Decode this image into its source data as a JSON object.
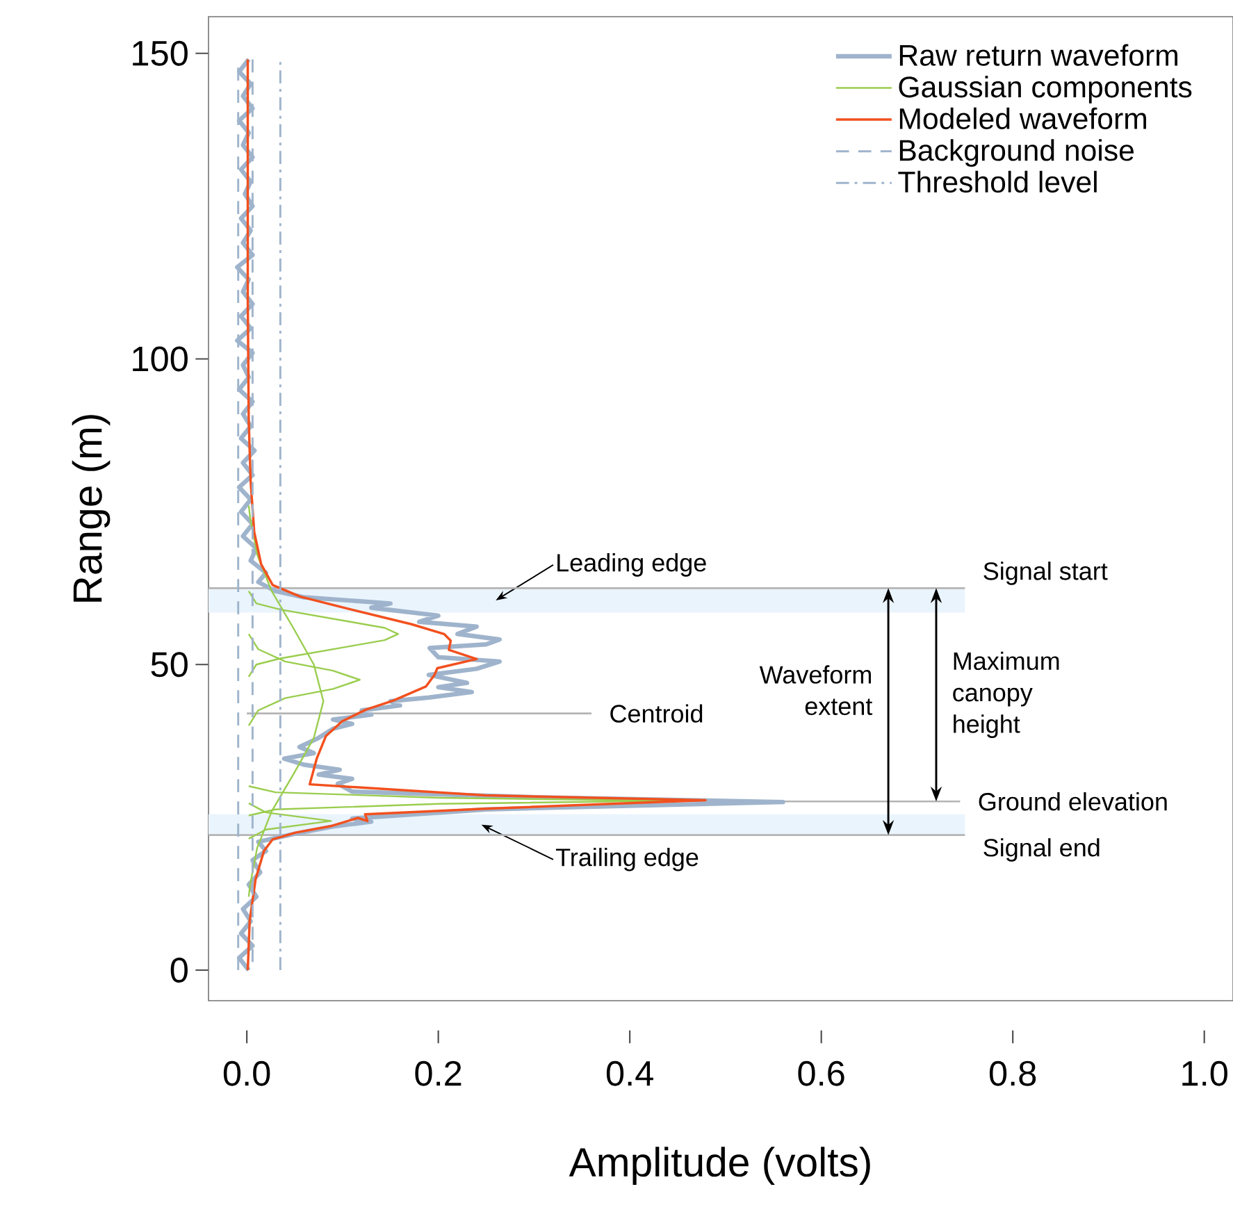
{
  "chart_data": {
    "type": "line",
    "xlabel": "Amplitude (volts)",
    "ylabel": "Range (m)",
    "xlim": [
      -0.04,
      1.03
    ],
    "ylim": [
      -5,
      156
    ],
    "xticks": [
      {
        "value": 0,
        "label": "0.0"
      },
      {
        "value": 0.2,
        "label": "0.2"
      },
      {
        "value": 0.4,
        "label": "0.4"
      },
      {
        "value": 0.6,
        "label": "0.6"
      },
      {
        "value": 0.8,
        "label": "0.8"
      },
      {
        "value": 1,
        "label": "1.0"
      }
    ],
    "yticks": [
      0,
      50,
      100,
      150
    ],
    "legend": "top right",
    "bands": [
      {
        "axis": "y",
        "from": 58.5,
        "to": 62.5,
        "label": "Leading edge",
        "color": "#eaf4fd"
      },
      {
        "axis": "y",
        "from": 22.1,
        "to": 25.5,
        "label": "Trailing edge",
        "color": "#eaf4fd"
      }
    ],
    "ref_lines": [
      {
        "axis": "y",
        "value": 62.5,
        "label": "Signal start",
        "color": "#b4b4b4"
      },
      {
        "axis": "y",
        "value": 42.0,
        "label": "Centroid",
        "color": "#b4b4b4"
      },
      {
        "axis": "y",
        "value": 27.6,
        "label": "Ground elevation",
        "color": "#b4b4b4"
      },
      {
        "axis": "y",
        "value": 22.1,
        "label": "Signal end",
        "color": "#b4b4b4"
      }
    ],
    "annotations": [
      "Waveform extent",
      "Maximum canopy height"
    ],
    "series": [
      {
        "name": "Raw return waveform",
        "color": "#9fb4cc",
        "line_style": "solid",
        "x": [
          0.002,
          -0.008,
          0.006,
          -0.006,
          0.004,
          -0.004,
          0.01,
          0.002,
          0.014,
          0.006,
          0.02,
          0.012,
          0.05,
          0.09,
          0.13,
          0.11,
          0.25,
          0.56,
          0.3,
          0.11,
          0.095,
          0.11,
          0.075,
          0.097,
          0.06,
          0.039,
          0.07,
          0.055,
          0.075,
          0.09,
          0.11,
          0.09,
          0.13,
          0.12,
          0.16,
          0.15,
          0.19,
          0.235,
          0.2,
          0.23,
          0.19,
          0.24,
          0.264,
          0.2,
          0.191,
          0.25,
          0.264,
          0.22,
          0.24,
          0.18,
          0.2,
          0.13,
          0.15,
          0.06,
          0.03,
          0.012,
          0.02,
          0.004,
          0.01,
          -0.004,
          0.006,
          -0.006,
          0.004,
          -0.008,
          0.006,
          -0.004,
          0.008,
          -0.006,
          0.004,
          -0.004,
          0.006,
          -0.008,
          0.002,
          -0.004,
          0.006,
          -0.01,
          0.004,
          -0.006,
          0.006,
          -0.004,
          0.002,
          -0.01,
          0.006,
          -0.004,
          0.004,
          -0.006,
          0.006,
          -0.002,
          0.004,
          -0.006,
          0.006,
          -0.004,
          0.002,
          -0.008,
          0.006,
          -0.004,
          0.004,
          -0.008,
          0.002
        ],
        "values": [
          0,
          2,
          4,
          6,
          8,
          10,
          12,
          14,
          16,
          18,
          19.5,
          21,
          22.3,
          23.5,
          24.3,
          24.8,
          26.3,
          27.5,
          28.3,
          29.2,
          30.5,
          31.3,
          32,
          32.8,
          33.6,
          34.6,
          35.5,
          36.5,
          38,
          39.5,
          40.3,
          41,
          41.8,
          42.5,
          43.3,
          44,
          44.6,
          45.5,
          46.3,
          47,
          48.3,
          49.3,
          50.5,
          51.2,
          52.7,
          53.3,
          54.1,
          55,
          56.2,
          57,
          58,
          59.3,
          60,
          61,
          62,
          63.5,
          65,
          67,
          69,
          71,
          73,
          75,
          77,
          79,
          81,
          83,
          85,
          87,
          89,
          91,
          93,
          95,
          97,
          99,
          101,
          103,
          105,
          107,
          109,
          111,
          113,
          115,
          117,
          119,
          121,
          123,
          125,
          127,
          129,
          131,
          133,
          135,
          137,
          139,
          141,
          143,
          145,
          147,
          149
        ]
      },
      {
        "name": "Gaussian components",
        "color": "#9acd4e",
        "line_style": "solid",
        "x": [
          0.002,
          0.01,
          0.035,
          0.108,
          0.144,
          0.158,
          0.144,
          0.108,
          0.035,
          0.01,
          0.002,
          null,
          0.002,
          0.012,
          0.04,
          0.09,
          0.118,
          0.09,
          0.04,
          0.012,
          0.002,
          null,
          0.002,
          0.0035,
          0.0108,
          0.026,
          0.0485,
          0.07,
          0.08,
          0.07,
          0.0485,
          0.026,
          0.0108,
          0.0035,
          0.002,
          null,
          0.002,
          0.03,
          0.2,
          0.437,
          0.2,
          0.03,
          0.002,
          null,
          0.002,
          0.02,
          0.088,
          0.02,
          0.002
        ],
        "values": [
          48,
          50,
          51,
          53,
          54,
          55,
          56,
          57,
          59,
          60,
          62,
          null,
          40,
          42.5,
          44.5,
          46,
          47.5,
          49,
          50.5,
          52.5,
          55,
          null,
          12,
          14,
          20,
          26,
          32,
          38,
          44,
          50,
          56,
          62,
          68,
          74,
          76,
          null,
          25.3,
          26.3,
          27.2,
          27.7,
          28.2,
          29.1,
          30.1,
          null,
          21.5,
          23,
          24.4,
          25.8,
          27.3
        ]
      },
      {
        "name": "Modeled waveform",
        "color": "#f2501e",
        "line_style": "solid",
        "x": [
          0.001,
          0.003,
          0.0092,
          0.0179,
          0.027,
          0.051,
          0.0888,
          0.116,
          0.126,
          0.1236,
          0.249,
          0.479,
          0.249,
          0.0657,
          0.073,
          0.0826,
          0.0995,
          0.124,
          0.153,
          0.187,
          0.196,
          0.199,
          0.24,
          0.211,
          0.213,
          0.206,
          0.172,
          0.104,
          0.056,
          0.027,
          0.015,
          0.0077,
          0.004,
          0.002,
          0.001,
          0.001
        ],
        "values": [
          0,
          8.1,
          14.9,
          19.5,
          21.4,
          22.5,
          23.6,
          24.9,
          24.4,
          25.5,
          26.4,
          27.8,
          28.6,
          30.4,
          34.6,
          38.3,
          40.7,
          42.6,
          44.1,
          46.4,
          48.3,
          49.4,
          50.9,
          52.4,
          53.9,
          55.0,
          56.6,
          59.2,
          61.1,
          63.0,
          66.4,
          71.7,
          80,
          90,
          110,
          149
        ]
      },
      {
        "name": "Background noise",
        "color": "#9fb4cc",
        "line_style": "dashed",
        "x": [
          -0.009,
          -0.009,
          null,
          0.006,
          0.006
        ],
        "values": [
          0,
          149,
          null,
          149,
          0
        ]
      },
      {
        "name": "Threshold level",
        "color": "#9fb4cc",
        "line_style": "dashdot",
        "x": [
          0.035,
          0.035
        ],
        "values": [
          0,
          149
        ]
      }
    ]
  }
}
